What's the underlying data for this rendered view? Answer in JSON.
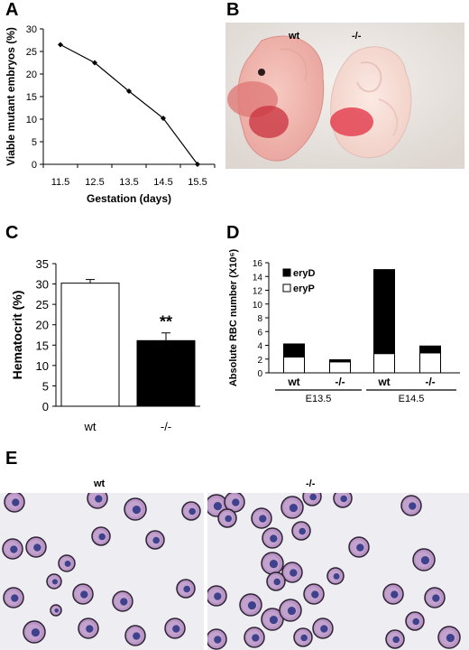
{
  "panels": {
    "A": "A",
    "B": "B",
    "C": "C",
    "D": "D",
    "E": "E"
  },
  "photo_b": {
    "label_left": "wt",
    "label_right": "-/-"
  },
  "photo_e": {
    "label_left": "wt",
    "label_right": "-/-"
  },
  "colors": {
    "bar_open": "#ffffff",
    "bar_solid": "#000000",
    "embryo_pink": "#f2c6bf",
    "blood_red": "#d8424e",
    "cell_purple": "#9a72ad",
    "nucleus_blue": "#3b3f8a"
  },
  "chart_data": [
    {
      "id": "A",
      "type": "line",
      "x": [
        11.5,
        12.5,
        13.5,
        14.5,
        15.5
      ],
      "y": [
        26.5,
        22.5,
        16.2,
        10.2,
        0
      ],
      "xlabel": "Gestation (days)",
      "ylabel": "Viable mutant embryos (%)",
      "ylim": [
        0,
        30
      ],
      "yticks": [
        0,
        5,
        10,
        15,
        20,
        25,
        30
      ],
      "xticks": [
        "11.5",
        "12.5",
        "13.5",
        "14.5",
        "15.5"
      ],
      "grid": false
    },
    {
      "id": "C",
      "type": "bar",
      "categories": [
        "wt",
        "-/-"
      ],
      "values": [
        30.2,
        16.1
      ],
      "errors": [
        0.9,
        1.9
      ],
      "ylabel": "Hematocrit (%)",
      "ylim": [
        0,
        35
      ],
      "yticks": [
        0,
        5,
        10,
        15,
        20,
        25,
        30,
        35
      ],
      "annotation": "**"
    },
    {
      "id": "D",
      "type": "bar",
      "stacked": true,
      "categories": [
        "wt",
        "-/-",
        "wt",
        "-/-"
      ],
      "groups": [
        {
          "label": "E13.5",
          "members": [
            0,
            1
          ]
        },
        {
          "label": "E14.5",
          "members": [
            2,
            3
          ]
        }
      ],
      "series": [
        {
          "name": "eryP",
          "values": [
            2.3,
            1.6,
            2.8,
            2.9
          ]
        },
        {
          "name": "eryD",
          "values": [
            1.9,
            0.3,
            12.2,
            1.0
          ]
        }
      ],
      "legend_order": [
        "eryD",
        "eryP"
      ],
      "ylabel": "Absolute RBC number (X10⁶)",
      "ylim": [
        0,
        16
      ],
      "yticks": [
        0,
        2,
        4,
        6,
        8,
        10,
        12,
        14,
        16
      ],
      "legend": "top-left"
    }
  ]
}
